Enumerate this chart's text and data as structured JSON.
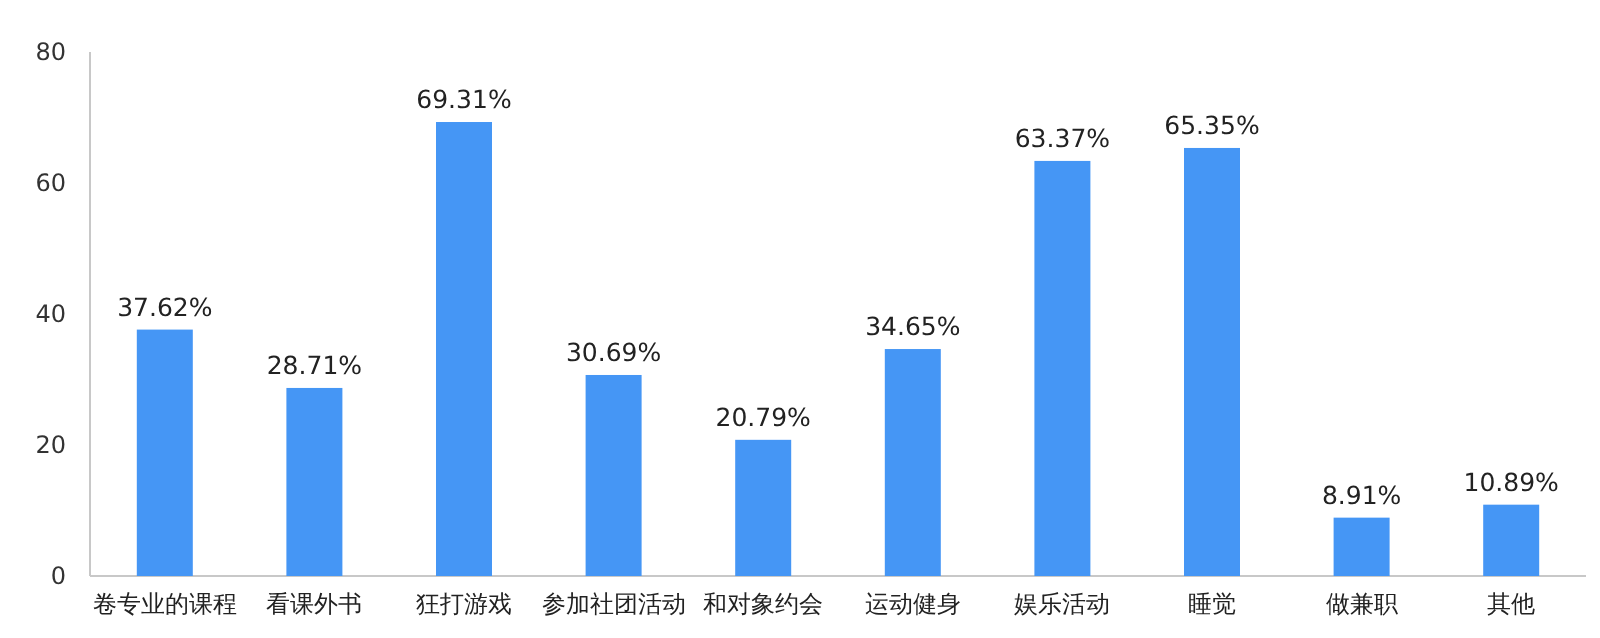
{
  "chart_data": {
    "type": "bar",
    "categories": [
      "卷专业的课程",
      "看课外书",
      "狂打游戏",
      "参加社团活动",
      "和对象约会",
      "运动健身",
      "娱乐活动",
      "睡觉",
      "做兼职",
      "其他"
    ],
    "values": [
      37.62,
      28.71,
      69.31,
      30.69,
      20.79,
      34.65,
      63.37,
      65.35,
      8.91,
      10.89
    ],
    "value_labels": [
      "37.62%",
      "28.71%",
      "69.31%",
      "30.69%",
      "20.79%",
      "34.65%",
      "63.37%",
      "65.35%",
      "8.91%",
      "10.89%"
    ],
    "color": "#4596f5",
    "ylim": [
      0,
      80
    ],
    "yticks": [
      0,
      20,
      40,
      60,
      80
    ]
  }
}
